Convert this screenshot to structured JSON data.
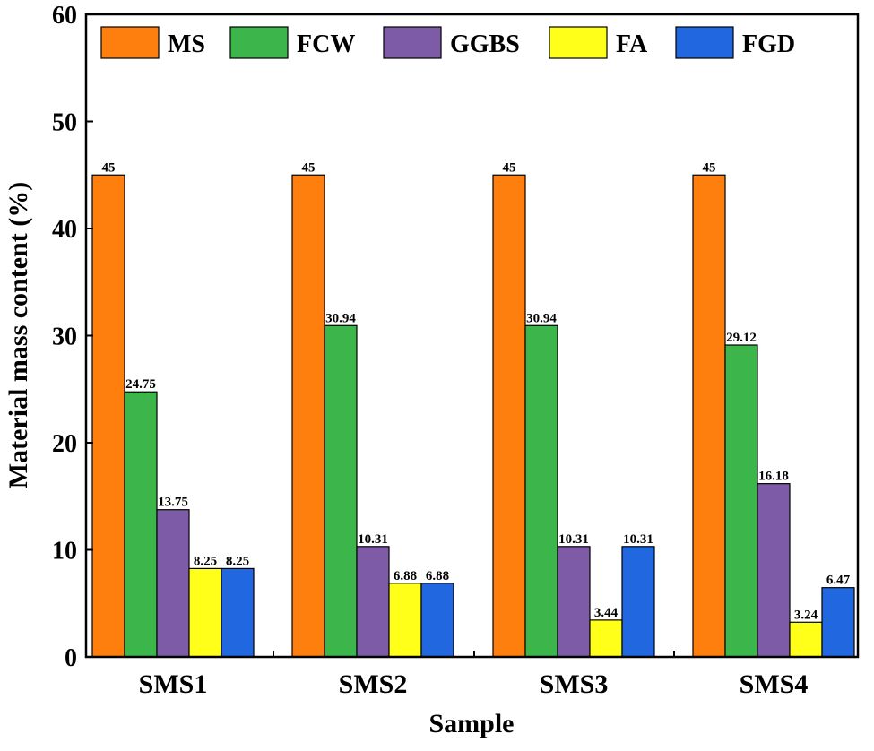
{
  "chart_data": {
    "type": "bar",
    "xlabel": "Sample",
    "ylabel": "Material mass content (%)",
    "ylim": [
      0,
      60
    ],
    "yticks": [
      "0",
      "10",
      "20",
      "30",
      "40",
      "50",
      "60"
    ],
    "categories": [
      "SMS1",
      "SMS2",
      "SMS3",
      "SMS4"
    ],
    "legend_position": "top",
    "grid": false,
    "series": [
      {
        "name": "MS",
        "color": "#FF7F0E",
        "values": [
          45,
          45,
          45,
          45
        ],
        "labels": [
          "45",
          "45",
          "45",
          "45"
        ]
      },
      {
        "name": "FCW",
        "color": "#3CB64A",
        "values": [
          24.75,
          30.94,
          30.94,
          29.12
        ],
        "labels": [
          "24.75",
          "30.94",
          "30.94",
          "29.12"
        ]
      },
      {
        "name": "GGBS",
        "color": "#7E5BA6",
        "values": [
          13.75,
          10.31,
          10.31,
          16.18
        ],
        "labels": [
          "13.75",
          "10.31",
          "10.31",
          "16.18"
        ]
      },
      {
        "name": "FA",
        "color": "#FFFF1A",
        "values": [
          8.25,
          6.88,
          3.44,
          3.24
        ],
        "labels": [
          "8.25",
          "6.88",
          "3.44",
          "3.24"
        ]
      },
      {
        "name": "FGD",
        "color": "#2167E0",
        "values": [
          8.25,
          6.88,
          10.31,
          6.47
        ],
        "labels": [
          "8.25",
          "6.88",
          "10.31",
          "6.47"
        ]
      }
    ]
  }
}
